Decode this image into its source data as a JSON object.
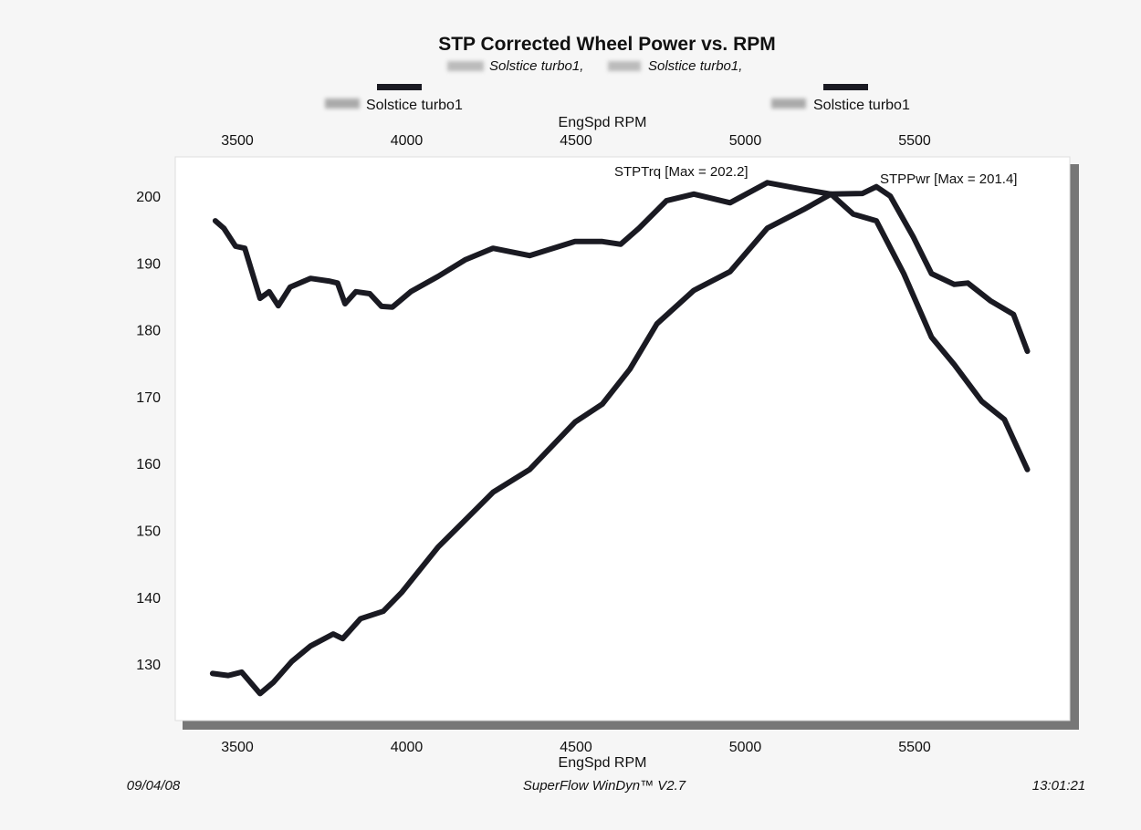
{
  "chart_data": {
    "type": "line",
    "title": "STP Corrected Wheel Power vs. RPM",
    "subtitle": [
      "Solstice turbo1,",
      "Solstice turbo1,"
    ],
    "legend": [
      {
        "label": "Solstice turbo1",
        "color": "#1a1a22"
      },
      {
        "label": "Solstice turbo1",
        "color": "#1a1a22"
      }
    ],
    "xlabel": "EngSpd  RPM",
    "xlabel_top": "EngSpd  RPM",
    "ylabel": "",
    "xlim": [
      3430,
      5880
    ],
    "ylim": [
      124,
      206
    ],
    "xticks": [
      3500,
      4000,
      4500,
      5000,
      5500
    ],
    "yticks": [
      130,
      140,
      150,
      160,
      170,
      180,
      190,
      200
    ],
    "series": [
      {
        "name": "STPTrq",
        "annotation": "STPTrq [Max = 202.2]",
        "color": "#1a1a22",
        "x": [
          3435,
          3460,
          3495,
          3522,
          3567,
          3594,
          3621,
          3656,
          3716,
          3770,
          3796,
          3818,
          3850,
          3891,
          3926,
          3958,
          4012,
          4093,
          4174,
          4255,
          4363,
          4497,
          4578,
          4632,
          4686,
          4767,
          4848,
          4955,
          5065,
          5172,
          5253,
          5346,
          5387,
          5428,
          5496,
          5550,
          5617,
          5657,
          5725,
          5792,
          5833
        ],
        "y": [
          196.3,
          195.2,
          192.5,
          192.2,
          184.7,
          185.7,
          183.6,
          186.4,
          187.7,
          187.3,
          187.0,
          183.9,
          185.7,
          185.4,
          183.5,
          183.4,
          185.7,
          188.0,
          190.5,
          192.2,
          191.1,
          193.2,
          193.2,
          192.8,
          195.2,
          199.3,
          200.3,
          199.0,
          202.0,
          201.0,
          200.3,
          200.4,
          201.4,
          200.0,
          193.9,
          188.4,
          186.8,
          187.0,
          184.3,
          182.3,
          176.8
        ]
      },
      {
        "name": "STPPwr",
        "annotation": "STPPwr [Max = 201.4]",
        "color": "#1a1a22",
        "x": [
          3427,
          3473,
          3513,
          3567,
          3607,
          3661,
          3716,
          3783,
          3811,
          3864,
          3931,
          3985,
          4093,
          4174,
          4255,
          4363,
          4497,
          4578,
          4659,
          4739,
          4848,
          4955,
          5065,
          5172,
          5253,
          5319,
          5387,
          5468,
          5550,
          5617,
          5698,
          5765,
          5833
        ],
        "y": [
          128.6,
          128.3,
          128.8,
          125.6,
          127.3,
          130.4,
          132.7,
          134.5,
          133.8,
          136.8,
          137.9,
          140.7,
          147.5,
          151.6,
          155.7,
          159.1,
          166.2,
          168.9,
          174.1,
          180.9,
          185.9,
          188.7,
          195.2,
          198.0,
          200.3,
          197.3,
          196.3,
          188.4,
          178.9,
          174.8,
          169.3,
          166.6,
          159.1
        ]
      }
    ],
    "grid": false
  },
  "footer": {
    "date": "09/04/08",
    "software": "SuperFlow WinDyn™ V2.7",
    "time": "13:01:21"
  }
}
